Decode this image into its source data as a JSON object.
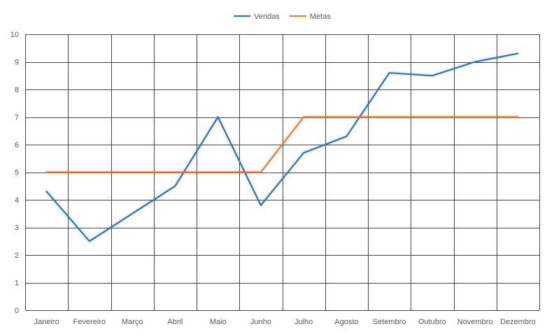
{
  "chart_data": {
    "type": "line",
    "title": "",
    "xlabel": "",
    "ylabel": "",
    "categories": [
      "Janeiro",
      "Fevereiro",
      "Março",
      "Abril",
      "Maio",
      "Junho",
      "Julho",
      "Agosto",
      "Setembro",
      "Outubro",
      "Novembro",
      "Dezembro"
    ],
    "ylim": [
      0,
      10
    ],
    "yticks": [
      "0",
      "1",
      "2",
      "3",
      "4",
      "5",
      "6",
      "7",
      "8",
      "9",
      "10"
    ],
    "grid": true,
    "legend": "top-center",
    "series": [
      {
        "name": "Vendas",
        "color": "#2e75b6",
        "values": [
          4.3,
          2.5,
          3.5,
          4.5,
          7.0,
          3.8,
          5.7,
          6.3,
          8.6,
          8.5,
          9.0,
          9.3
        ]
      },
      {
        "name": "Metas",
        "color": "#ed7d31",
        "values": [
          5,
          5,
          5,
          5,
          5,
          5,
          7,
          7,
          7,
          7,
          7,
          7
        ]
      }
    ]
  }
}
